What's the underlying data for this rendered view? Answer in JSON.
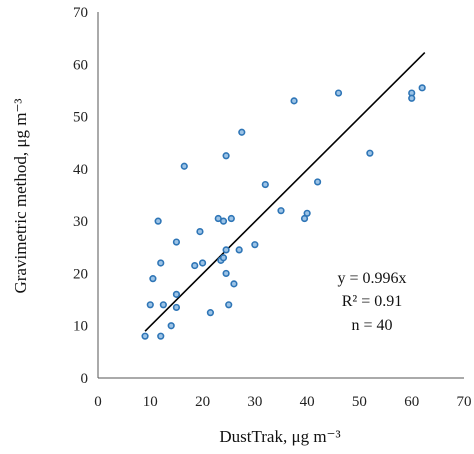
{
  "chart_data": {
    "type": "scatter",
    "xlabel": "DustTrak, μg m⁻³",
    "ylabel": "Gravimetric  method, μg m⁻³",
    "xlim": [
      0,
      70
    ],
    "ylim": [
      0,
      70
    ],
    "xticks": [
      "0",
      "10",
      "20",
      "30",
      "40",
      "50",
      "60",
      "70"
    ],
    "yticks": [
      "0",
      "10",
      "20",
      "30",
      "40",
      "50",
      "60",
      "70"
    ],
    "grid": false,
    "points": [
      {
        "x": 9.0,
        "y": 8.0
      },
      {
        "x": 10.0,
        "y": 14.0
      },
      {
        "x": 10.5,
        "y": 19.0
      },
      {
        "x": 11.5,
        "y": 30.0
      },
      {
        "x": 12.0,
        "y": 22.0
      },
      {
        "x": 12.0,
        "y": 8.0
      },
      {
        "x": 12.5,
        "y": 14.0
      },
      {
        "x": 14.0,
        "y": 10.0
      },
      {
        "x": 15.0,
        "y": 26.0
      },
      {
        "x": 15.0,
        "y": 16.0
      },
      {
        "x": 15.0,
        "y": 13.5
      },
      {
        "x": 16.5,
        "y": 40.5
      },
      {
        "x": 18.5,
        "y": 21.5
      },
      {
        "x": 19.5,
        "y": 28.0
      },
      {
        "x": 20.0,
        "y": 22.0
      },
      {
        "x": 21.5,
        "y": 12.5
      },
      {
        "x": 23.0,
        "y": 30.5
      },
      {
        "x": 23.5,
        "y": 22.5
      },
      {
        "x": 24.0,
        "y": 30.0
      },
      {
        "x": 24.0,
        "y": 23.0
      },
      {
        "x": 24.5,
        "y": 24.5
      },
      {
        "x": 24.5,
        "y": 20.0
      },
      {
        "x": 24.5,
        "y": 42.5
      },
      {
        "x": 25.0,
        "y": 14.0
      },
      {
        "x": 25.5,
        "y": 30.5
      },
      {
        "x": 26.0,
        "y": 18.0
      },
      {
        "x": 27.0,
        "y": 24.5
      },
      {
        "x": 27.5,
        "y": 47.0
      },
      {
        "x": 30.0,
        "y": 25.5
      },
      {
        "x": 32.0,
        "y": 37.0
      },
      {
        "x": 35.0,
        "y": 32.0
      },
      {
        "x": 37.5,
        "y": 53.0
      },
      {
        "x": 39.5,
        "y": 30.5
      },
      {
        "x": 40.0,
        "y": 31.5
      },
      {
        "x": 42.0,
        "y": 37.5
      },
      {
        "x": 46.0,
        "y": 54.5
      },
      {
        "x": 52.0,
        "y": 43.0
      },
      {
        "x": 60.0,
        "y": 54.5
      },
      {
        "x": 60.0,
        "y": 53.5
      },
      {
        "x": 62.0,
        "y": 55.5
      }
    ],
    "fit": {
      "slope": 0.996,
      "x_start": 9,
      "x_end": 62.5
    },
    "annotations": [
      "y = 0.996x",
      "R² = 0.91",
      "n = 40"
    ]
  }
}
